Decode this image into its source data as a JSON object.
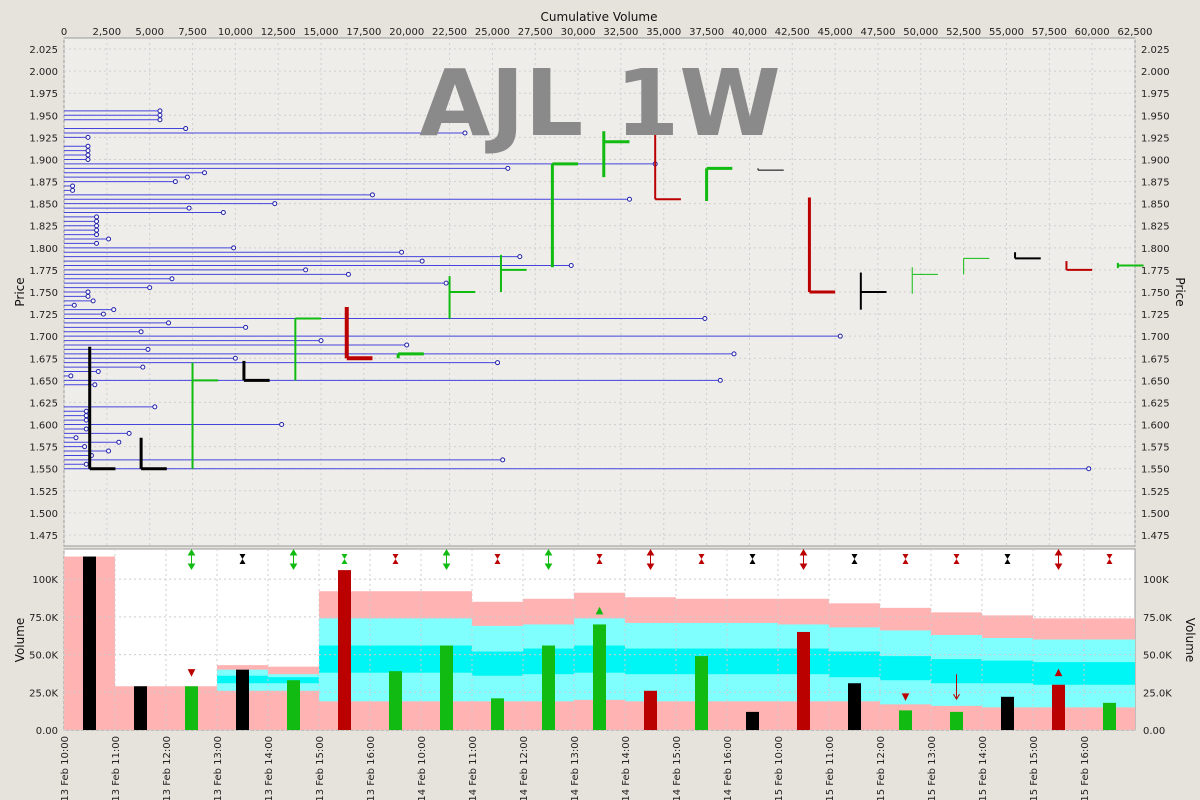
{
  "chart_data": [
    {
      "type": "price-volume-profile",
      "title": "AJL 1W",
      "top_axis_title": "Cumulative Volume",
      "y_axis_title": "Price",
      "xlim": [
        0,
        62500
      ],
      "ylim": [
        1.4625,
        2.0375
      ],
      "x_ticks": [
        "0",
        "2,500",
        "5,000",
        "7,500",
        "10,000",
        "12,500",
        "15,000",
        "17,500",
        "20,000",
        "22,500",
        "25,000",
        "27,500",
        "30,000",
        "32,500",
        "35,000",
        "37,500",
        "40,000",
        "42,500",
        "45,000",
        "47,500",
        "50,000",
        "52,500",
        "55,000",
        "57,500",
        "60,000",
        "62,500"
      ],
      "y_ticks": [
        "2.025",
        "2.000",
        "1.975",
        "1.950",
        "1.925",
        "1.900",
        "1.875",
        "1.850",
        "1.825",
        "1.800",
        "1.775",
        "1.750",
        "1.725",
        "1.700",
        "1.675",
        "1.650",
        "1.625",
        "1.600",
        "1.575",
        "1.550",
        "1.525",
        "1.500",
        "1.475"
      ],
      "grid": true,
      "profile_lines": [
        {
          "price": 1.955,
          "volume": 5600
        },
        {
          "price": 1.95,
          "volume": 5600
        },
        {
          "price": 1.945,
          "volume": 5600
        },
        {
          "price": 1.935,
          "volume": 7100
        },
        {
          "price": 1.93,
          "volume": 23400
        },
        {
          "price": 1.925,
          "volume": 1400
        },
        {
          "price": 1.915,
          "volume": 1400
        },
        {
          "price": 1.91,
          "volume": 1400
        },
        {
          "price": 1.905,
          "volume": 1400
        },
        {
          "price": 1.9,
          "volume": 1400
        },
        {
          "price": 1.895,
          "volume": 34500
        },
        {
          "price": 1.89,
          "volume": 25900
        },
        {
          "price": 1.885,
          "volume": 8200
        },
        {
          "price": 1.88,
          "volume": 7200
        },
        {
          "price": 1.875,
          "volume": 6500
        },
        {
          "price": 1.87,
          "volume": 500
        },
        {
          "price": 1.865,
          "volume": 500
        },
        {
          "price": 1.86,
          "volume": 18000
        },
        {
          "price": 1.855,
          "volume": 33000
        },
        {
          "price": 1.85,
          "volume": 12300
        },
        {
          "price": 1.845,
          "volume": 7300
        },
        {
          "price": 1.84,
          "volume": 9300
        },
        {
          "price": 1.835,
          "volume": 1900
        },
        {
          "price": 1.83,
          "volume": 1900
        },
        {
          "price": 1.825,
          "volume": 1900
        },
        {
          "price": 1.82,
          "volume": 1900
        },
        {
          "price": 1.815,
          "volume": 1900
        },
        {
          "price": 1.81,
          "volume": 2600
        },
        {
          "price": 1.805,
          "volume": 1900
        },
        {
          "price": 1.8,
          "volume": 9900
        },
        {
          "price": 1.795,
          "volume": 19700
        },
        {
          "price": 1.79,
          "volume": 26600
        },
        {
          "price": 1.785,
          "volume": 20900
        },
        {
          "price": 1.78,
          "volume": 29600
        },
        {
          "price": 1.775,
          "volume": 14100
        },
        {
          "price": 1.77,
          "volume": 16600
        },
        {
          "price": 1.765,
          "volume": 6300
        },
        {
          "price": 1.76,
          "volume": 22300
        },
        {
          "price": 1.755,
          "volume": 5000
        },
        {
          "price": 1.75,
          "volume": 1400
        },
        {
          "price": 1.745,
          "volume": 1400
        },
        {
          "price": 1.74,
          "volume": 1700
        },
        {
          "price": 1.735,
          "volume": 600
        },
        {
          "price": 1.73,
          "volume": 2900
        },
        {
          "price": 1.725,
          "volume": 2300
        },
        {
          "price": 1.72,
          "volume": 37400
        },
        {
          "price": 1.715,
          "volume": 6100
        },
        {
          "price": 1.71,
          "volume": 10600
        },
        {
          "price": 1.705,
          "volume": 4500
        },
        {
          "price": 1.7,
          "volume": 45300
        },
        {
          "price": 1.695,
          "volume": 15000
        },
        {
          "price": 1.69,
          "volume": 20000
        },
        {
          "price": 1.685,
          "volume": 4900
        },
        {
          "price": 1.68,
          "volume": 39100
        },
        {
          "price": 1.675,
          "volume": 10000
        },
        {
          "price": 1.67,
          "volume": 25300
        },
        {
          "price": 1.665,
          "volume": 4600
        },
        {
          "price": 1.66,
          "volume": 2000
        },
        {
          "price": 1.655,
          "volume": 400
        },
        {
          "price": 1.65,
          "volume": 38300
        },
        {
          "price": 1.645,
          "volume": 1800
        },
        {
          "price": 1.62,
          "volume": 5300
        },
        {
          "price": 1.615,
          "volume": 1300
        },
        {
          "price": 1.61,
          "volume": 1300
        },
        {
          "price": 1.605,
          "volume": 1300
        },
        {
          "price": 1.6,
          "volume": 12700
        },
        {
          "price": 1.595,
          "volume": 1300
        },
        {
          "price": 1.59,
          "volume": 3800
        },
        {
          "price": 1.585,
          "volume": 700
        },
        {
          "price": 1.58,
          "volume": 3200
        },
        {
          "price": 1.575,
          "volume": 1200
        },
        {
          "price": 1.57,
          "volume": 2600
        },
        {
          "price": 1.565,
          "volume": 1600
        },
        {
          "price": 1.56,
          "volume": 25600
        },
        {
          "price": 1.555,
          "volume": 1300
        },
        {
          "price": 1.55,
          "volume": 59800
        }
      ],
      "period_bars": [
        {
          "x0": 1500,
          "x1": 3000,
          "high": 1.688,
          "low": 1.55,
          "close": 1.55,
          "color": "black",
          "weight": 3
        },
        {
          "x0": 4500,
          "x1": 6000,
          "high": 1.585,
          "low": 1.55,
          "close": 1.55,
          "color": "black",
          "weight": 3
        },
        {
          "x0": 7500,
          "x1": 9000,
          "high": 1.67,
          "low": 1.55,
          "close": 1.65,
          "color": "green",
          "weight": 2
        },
        {
          "x0": 10500,
          "x1": 12000,
          "high": 1.672,
          "low": 1.65,
          "close": 1.65,
          "color": "black",
          "weight": 3
        },
        {
          "x0": 13500,
          "x1": 15000,
          "high": 1.72,
          "low": 1.65,
          "close": 1.72,
          "color": "green",
          "weight": 2
        },
        {
          "x0": 16500,
          "x1": 18000,
          "high": 1.733,
          "low": 1.675,
          "close": 1.675,
          "color": "red",
          "weight": 4
        },
        {
          "x0": 19500,
          "x1": 21000,
          "high": 1.68,
          "low": 1.675,
          "close": 1.68,
          "color": "green",
          "weight": 3
        },
        {
          "x0": 22500,
          "x1": 24000,
          "high": 1.768,
          "low": 1.72,
          "close": 1.75,
          "color": "green",
          "weight": 2
        },
        {
          "x0": 25500,
          "x1": 27000,
          "high": 1.792,
          "low": 1.75,
          "close": 1.775,
          "color": "green",
          "weight": 2
        },
        {
          "x0": 28500,
          "x1": 30000,
          "high": 1.895,
          "low": 1.778,
          "close": 1.895,
          "color": "green",
          "weight": 3
        },
        {
          "x0": 31500,
          "x1": 33000,
          "high": 1.932,
          "low": 1.88,
          "close": 1.92,
          "color": "green",
          "weight": 3
        },
        {
          "x0": 34500,
          "x1": 36000,
          "high": 1.95,
          "low": 1.855,
          "close": 1.855,
          "color": "red",
          "weight": 2
        },
        {
          "x0": 37500,
          "x1": 39000,
          "high": 1.89,
          "low": 1.853,
          "close": 1.89,
          "color": "green",
          "weight": 3
        },
        {
          "x0": 40500,
          "x1": 42000,
          "high": 1.89,
          "low": 1.888,
          "close": 1.888,
          "color": "black",
          "weight": 1
        },
        {
          "x0": 43500,
          "x1": 45000,
          "high": 1.857,
          "low": 1.75,
          "close": 1.75,
          "color": "red",
          "weight": 3
        },
        {
          "x0": 46500,
          "x1": 48000,
          "high": 1.772,
          "low": 1.73,
          "close": 1.75,
          "color": "black",
          "weight": 2
        },
        {
          "x0": 49500,
          "x1": 51000,
          "high": 1.778,
          "low": 1.748,
          "close": 1.77,
          "color": "green",
          "weight": 1
        },
        {
          "x0": 52500,
          "x1": 54000,
          "high": 1.788,
          "low": 1.77,
          "close": 1.788,
          "color": "green",
          "weight": 1
        },
        {
          "x0": 55500,
          "x1": 57000,
          "high": 1.795,
          "low": 1.788,
          "close": 1.788,
          "color": "black",
          "weight": 2
        },
        {
          "x0": 58500,
          "x1": 60000,
          "high": 1.785,
          "low": 1.775,
          "close": 1.775,
          "color": "red",
          "weight": 2
        },
        {
          "x0": 61500,
          "x1": 63000,
          "high": 1.783,
          "low": 1.777,
          "close": 1.78,
          "color": "green",
          "weight": 2
        }
      ]
    },
    {
      "type": "bar",
      "y_axis_title": "Volume",
      "ylim": [
        0,
        120000
      ],
      "y_ticks": [
        "0.00",
        "25.0K",
        "50.0K",
        "75.0K",
        "100K"
      ],
      "x_ticks": [
        "13 Feb 10:00",
        "13 Feb 11:00",
        "13 Feb 12:00",
        "13 Feb 13:00",
        "13 Feb 14:00",
        "13 Feb 15:00",
        "13 Feb 16:00",
        "14 Feb 10:00",
        "14 Feb 11:00",
        "14 Feb 12:00",
        "14 Feb 13:00",
        "14 Feb 14:00",
        "14 Feb 15:00",
        "14 Feb 16:00",
        "15 Feb 10:00",
        "15 Feb 11:00",
        "15 Feb 12:00",
        "15 Feb 13:00",
        "15 Feb 14:00",
        "15 Feb 15:00",
        "15 Feb 16:00"
      ],
      "grid": true,
      "bars": [
        {
          "value": 115000,
          "color": "black"
        },
        {
          "value": 29000,
          "color": "black"
        },
        {
          "value": 29000,
          "color": "green"
        },
        {
          "value": 40000,
          "color": "black"
        },
        {
          "value": 33000,
          "color": "green"
        },
        {
          "value": 106000,
          "color": "red"
        },
        {
          "value": 39000,
          "color": "green"
        },
        {
          "value": 56000,
          "color": "green"
        },
        {
          "value": 21000,
          "color": "green"
        },
        {
          "value": 56000,
          "color": "green"
        },
        {
          "value": 70000,
          "color": "green"
        },
        {
          "value": 26000,
          "color": "red"
        },
        {
          "value": 49000,
          "color": "green"
        },
        {
          "value": 12000,
          "color": "black"
        },
        {
          "value": 65000,
          "color": "red"
        },
        {
          "value": 31000,
          "color": "black"
        },
        {
          "value": 13000,
          "color": "green"
        },
        {
          "value": 12000,
          "color": "green"
        },
        {
          "value": 22000,
          "color": "black"
        },
        {
          "value": 30000,
          "color": "red"
        },
        {
          "value": 18000,
          "color": "green"
        }
      ],
      "bands": [
        {
          "pink_top": 115000,
          "cyan_top": null,
          "cyan_mid": null,
          "cyan_low": null,
          "pink_bot": null
        },
        {
          "pink_top": 29000,
          "cyan_top": null,
          "cyan_mid": null,
          "cyan_low": null,
          "pink_bot": null
        },
        {
          "pink_top": 29000,
          "cyan_top": null,
          "cyan_mid": null,
          "cyan_low": null,
          "pink_bot": null
        },
        {
          "pink_top": 43000,
          "cyan_top": 40000,
          "cyan_mid": 36000,
          "cyan_low": 31000,
          "pink_bot": 26000
        },
        {
          "pink_top": 42000,
          "cyan_top": 37000,
          "cyan_mid": 35000,
          "cyan_low": 31000,
          "pink_bot": 26000
        },
        {
          "pink_top": 92000,
          "cyan_top": 74000,
          "cyan_mid": 56000,
          "cyan_low": 38000,
          "pink_bot": 19000
        },
        {
          "pink_top": 92000,
          "cyan_top": 74000,
          "cyan_mid": 56000,
          "cyan_low": 38000,
          "pink_bot": 19000
        },
        {
          "pink_top": 92000,
          "cyan_top": 74000,
          "cyan_mid": 56000,
          "cyan_low": 38000,
          "pink_bot": 19000
        },
        {
          "pink_top": 85000,
          "cyan_top": 69000,
          "cyan_mid": 52000,
          "cyan_low": 36000,
          "pink_bot": 19000
        },
        {
          "pink_top": 87000,
          "cyan_top": 70000,
          "cyan_mid": 54000,
          "cyan_low": 37000,
          "pink_bot": 19000
        },
        {
          "pink_top": 91000,
          "cyan_top": 74000,
          "cyan_mid": 56000,
          "cyan_low": 38000,
          "pink_bot": 20000
        },
        {
          "pink_top": 88000,
          "cyan_top": 71000,
          "cyan_mid": 54000,
          "cyan_low": 37000,
          "pink_bot": 19000
        },
        {
          "pink_top": 87000,
          "cyan_top": 71000,
          "cyan_mid": 54000,
          "cyan_low": 37000,
          "pink_bot": 19000
        },
        {
          "pink_top": 87000,
          "cyan_top": 71000,
          "cyan_mid": 54000,
          "cyan_low": 37000,
          "pink_bot": 19000
        },
        {
          "pink_top": 87000,
          "cyan_top": 70000,
          "cyan_mid": 54000,
          "cyan_low": 37000,
          "pink_bot": 19000
        },
        {
          "pink_top": 84000,
          "cyan_top": 68000,
          "cyan_mid": 52000,
          "cyan_low": 35000,
          "pink_bot": 19000
        },
        {
          "pink_top": 81000,
          "cyan_top": 66000,
          "cyan_mid": 49000,
          "cyan_low": 33000,
          "pink_bot": 17000
        },
        {
          "pink_top": 78000,
          "cyan_top": 63000,
          "cyan_mid": 47000,
          "cyan_low": 31000,
          "pink_bot": 16000
        },
        {
          "pink_top": 76000,
          "cyan_top": 61000,
          "cyan_mid": 46000,
          "cyan_low": 31000,
          "pink_bot": 15000
        },
        {
          "pink_top": 74000,
          "cyan_top": 60000,
          "cyan_mid": 45000,
          "cyan_low": 30000,
          "pink_bot": 15000
        },
        {
          "pink_top": 74000,
          "cyan_top": 60000,
          "cyan_mid": 45000,
          "cyan_low": 30000,
          "pink_bot": 15000
        }
      ],
      "markers": [
        {
          "index": 2,
          "type": "up-down",
          "color": "green"
        },
        {
          "index": 3,
          "type": "hourglass",
          "color": "black"
        },
        {
          "index": 4,
          "type": "up-down",
          "color": "green"
        },
        {
          "index": 5,
          "type": "hourglass",
          "color": "green"
        },
        {
          "index": 6,
          "type": "hourglass",
          "color": "red"
        },
        {
          "index": 7,
          "type": "up-down",
          "color": "green"
        },
        {
          "index": 8,
          "type": "hourglass",
          "color": "red"
        },
        {
          "index": 9,
          "type": "up-down",
          "color": "green"
        },
        {
          "index": 10,
          "type": "hourglass",
          "color": "red"
        },
        {
          "index": 11,
          "type": "up-down",
          "color": "red"
        },
        {
          "index": 12,
          "type": "hourglass",
          "color": "red"
        },
        {
          "index": 13,
          "type": "hourglass",
          "color": "black"
        },
        {
          "index": 14,
          "type": "up-down",
          "color": "red"
        },
        {
          "index": 15,
          "type": "hourglass",
          "color": "black"
        },
        {
          "index": 16,
          "type": "hourglass",
          "color": "red"
        },
        {
          "index": 17,
          "type": "hourglass",
          "color": "red"
        },
        {
          "index": 18,
          "type": "hourglass",
          "color": "black"
        },
        {
          "index": 19,
          "type": "up-down",
          "color": "red"
        },
        {
          "index": 20,
          "type": "hourglass",
          "color": "red"
        }
      ],
      "bar_markers": [
        {
          "index": 2,
          "value": 38000,
          "type": "down",
          "color": "red"
        },
        {
          "index": 10,
          "value": 79000,
          "type": "up",
          "color": "green"
        },
        {
          "index": 16,
          "value": 22000,
          "type": "down",
          "color": "red"
        },
        {
          "index": 17,
          "value": 37000,
          "type": "arrow-down",
          "color": "red"
        },
        {
          "index": 19,
          "value": 38000,
          "type": "up",
          "color": "red"
        }
      ]
    }
  ]
}
